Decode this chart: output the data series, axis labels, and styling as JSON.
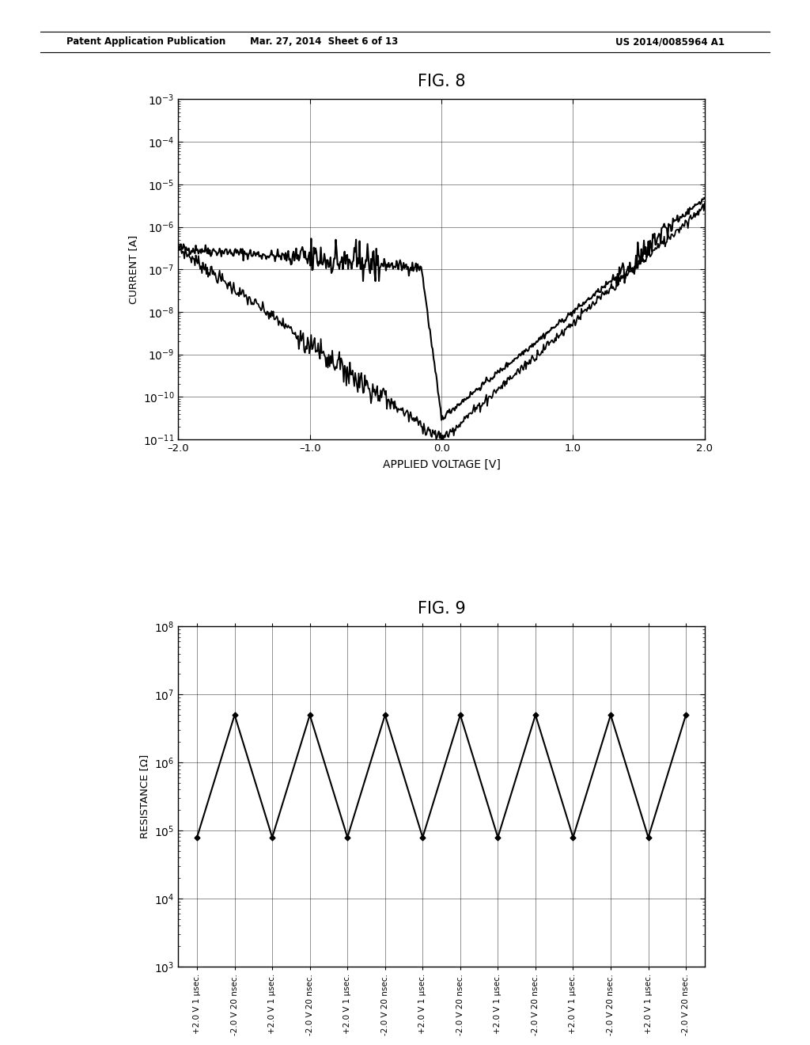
{
  "fig8_title": "FIG. 8",
  "fig9_title": "FIG. 9",
  "header_left": "Patent Application Publication",
  "header_mid": "Mar. 27, 2014  Sheet 6 of 13",
  "header_right": "US 2014/0085964 A1",
  "fig8_xlabel": "APPLIED VOLTAGE [V]",
  "fig8_ylabel": "CURRENT [A]",
  "fig8_xlim": [
    -2.0,
    2.0
  ],
  "fig8_ylim_log": [
    -11,
    -3
  ],
  "fig8_xticks": [
    -2.0,
    -1.0,
    0.0,
    1.0,
    2.0
  ],
  "fig8_xtick_labels": [
    "–2.0",
    "–1.0",
    "0.0",
    "1.0",
    "2.0"
  ],
  "fig9_ylabel": "RESISTANCE [Ω]",
  "fig9_ylim_log": [
    3,
    8
  ],
  "background_color": "#ffffff",
  "line_color": "#000000",
  "fig9_xtick_labels": [
    "+2.0 V 1 μsec.",
    "-2.0 V 20 nsec.",
    "+2.0 V 1 μsec.",
    "-2.0 V 20 nsec.",
    "+2.0 V 1 μsec.",
    "-2.0 V 20 nsec.",
    "+2.0 V 1 μsec.",
    "-2.0 V 20 nsec.",
    "+2.0 V 1 μsec.",
    "-2.0 V 20 nsec.",
    "+2.0 V 1 μsec.",
    "-2.0 V 20 nsec.",
    "+2.0 V 1 μsec.",
    "-2.0 V 20 nsec."
  ]
}
